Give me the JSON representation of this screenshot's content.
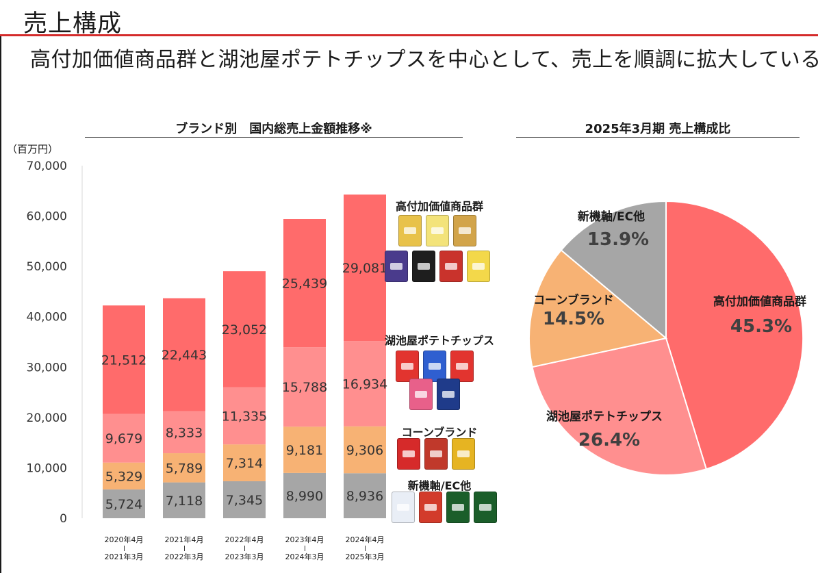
{
  "page": {
    "title": "売上構成",
    "subtitle": "高付加価値商品群と湖池屋ポテトチップスを中心として、売上を順調に拡大している。"
  },
  "bar_section": {
    "title": "ブランド別　国内総売上金額推移※",
    "unit": "（百万円）"
  },
  "pie_section": {
    "title": "2025年3月期 売上構成比"
  },
  "brand_labels": [
    "高付加価値商品群",
    "湖池屋ポテトチップス",
    "コーンブランド",
    "新機軸/EC他"
  ],
  "periods": [
    {
      "start": "2020年4月",
      "end": "2021年3月"
    },
    {
      "start": "2021年4月",
      "end": "2022年3月"
    },
    {
      "start": "2022年4月",
      "end": "2023年3月"
    },
    {
      "start": "2023年4月",
      "end": "2024年3月"
    },
    {
      "start": "2024年4月",
      "end": "2025年3月"
    }
  ],
  "colors": {
    "premium": "#ff6b6b",
    "potato": "#ff8f8f",
    "corn": "#f7b274",
    "other": "#a6a6a6",
    "accent": "#d42b2b"
  },
  "chart_data": [
    {
      "type": "bar",
      "stacked": true,
      "title": "ブランド別　国内総売上金額推移※",
      "ylabel": "（百万円）",
      "ylim": [
        0,
        70000
      ],
      "yticks": [
        0,
        10000,
        20000,
        30000,
        40000,
        50000,
        60000,
        70000
      ],
      "ytick_labels": [
        "0",
        "10,000",
        "20,000",
        "30,000",
        "40,000",
        "50,000",
        "60,000",
        "70,000"
      ],
      "categories": [
        "2020年4月-2021年3月",
        "2021年4月-2022年3月",
        "2022年4月-2023年3月",
        "2023年4月-2024年3月",
        "2024年4月-2025年3月"
      ],
      "series": [
        {
          "name": "新機軸/EC他",
          "color": "#a6a6a6",
          "values": [
            5724,
            7118,
            7345,
            8990,
            8936
          ],
          "labels": [
            "5,724",
            "7,118",
            "7,345",
            "8,990",
            "8,936"
          ]
        },
        {
          "name": "コーンブランド",
          "color": "#f7b274",
          "values": [
            5329,
            5789,
            7314,
            9181,
            9306
          ],
          "labels": [
            "5,329",
            "5,789",
            "7,314",
            "9,181",
            "9,306"
          ]
        },
        {
          "name": "湖池屋ポテトチップス",
          "color": "#ff8f8f",
          "values": [
            9679,
            8333,
            11335,
            15788,
            16934
          ],
          "labels": [
            "9,679",
            "8,333",
            "11,335",
            "15,788",
            "16,934"
          ]
        },
        {
          "name": "高付加価値商品群",
          "color": "#ff6b6b",
          "values": [
            21512,
            22443,
            23052,
            25439,
            29081
          ],
          "labels": [
            "21,512",
            "22,443",
            "23,052",
            "25,439",
            "29,081"
          ]
        }
      ],
      "grid": false,
      "legend": "right"
    },
    {
      "type": "pie",
      "title": "2025年3月期 売上構成比",
      "slices": [
        {
          "name": "高付加価値商品群",
          "value": 45.3,
          "label": "45.3%",
          "color": "#ff6b6b"
        },
        {
          "name": "湖池屋ポテトチップス",
          "value": 26.4,
          "label": "26.4%",
          "color": "#ff8f8f"
        },
        {
          "name": "コーンブランド",
          "value": 14.5,
          "label": "14.5%",
          "color": "#f7b274"
        },
        {
          "name": "新機軸/EC他",
          "value": 13.9,
          "label": "13.9%",
          "color": "#a6a6a6"
        }
      ]
    }
  ],
  "packs": {
    "premium": [
      "#e8c24a",
      "#f3e37a",
      "#d2a44a",
      "#4a3b8c",
      "#1e1e1e",
      "#c9332c",
      "#f3d84a",
      "#e77fb0"
    ],
    "potato": [
      "#e2342f",
      "#2f5fd0",
      "#e2342f",
      "#e8608a",
      "#1f3b8a"
    ],
    "corn": [
      "#d62a2a",
      "#c0392b",
      "#e6b422"
    ],
    "other": [
      "#e9eef6",
      "#d23b2b",
      "#1b5e2a",
      "#1b5e2a"
    ]
  }
}
